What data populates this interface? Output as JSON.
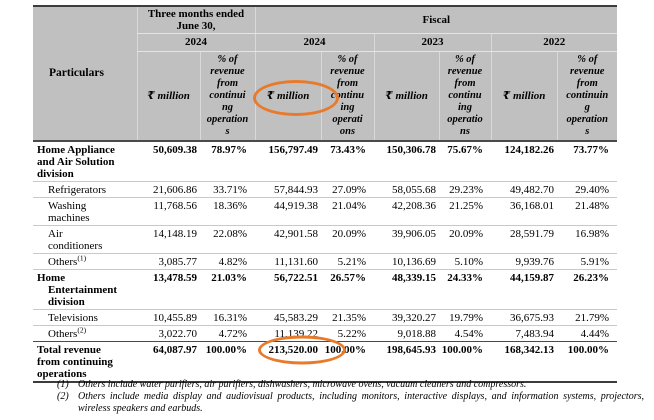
{
  "colors": {
    "annotation_orange": "#E87A2B",
    "header_gray": "#C0C0C0"
  },
  "table": {
    "particulars_label": "Particulars",
    "period_three_months": {
      "title": "Three months ended\nJune 30,",
      "year": "2024"
    },
    "period_fiscal": {
      "title": "Fiscal",
      "years": [
        "2024",
        "2023",
        "2022"
      ]
    },
    "unit_label": "₹ million",
    "pct_labels": [
      "% of\nrevenue\nfrom\ncontinui\nng\noperation\ns",
      "% of\nrevenue\nfrom\ncontinu\ning\noperati\nons",
      "% of\nrevenue\nfrom\ncontinu\ning\noperatio\nns",
      "% of\nrevenue\nfrom\ncontinuin\ng\noperation\ns"
    ],
    "rows": [
      {
        "label": "Home Appliance\nand Air Solution\ndivision",
        "sup": "",
        "bold": true,
        "indent": "flush",
        "divider": "light",
        "values": [
          "50,609.38",
          "78.97%",
          "156,797.49",
          "73.43%",
          "150,306.78",
          "75.67%",
          "124,182.26",
          "73.77%"
        ]
      },
      {
        "label": "Refrigerators",
        "sup": "",
        "bold": false,
        "indent": "indent",
        "divider": "light",
        "values": [
          "21,606.86",
          "33.71%",
          "57,844.93",
          "27.09%",
          "58,055.68",
          "29.23%",
          "49,482.70",
          "29.40%"
        ]
      },
      {
        "label": "Washing\nmachines",
        "sup": "",
        "bold": false,
        "indent": "indent",
        "divider": "light",
        "values": [
          "11,768.56",
          "18.36%",
          "44,919.38",
          "21.04%",
          "42,208.36",
          "21.25%",
          "36,168.01",
          "21.48%"
        ]
      },
      {
        "label": "Air\nconditioners",
        "sup": "",
        "bold": false,
        "indent": "indent",
        "divider": "light",
        "values": [
          "14,148.19",
          "22.08%",
          "42,901.58",
          "20.09%",
          "39,906.05",
          "20.09%",
          "28,591.79",
          "16.98%"
        ]
      },
      {
        "label": "Others",
        "sup": "(1)",
        "bold": false,
        "indent": "indent",
        "divider": "light",
        "values": [
          "3,085.77",
          "4.82%",
          "11,131.60",
          "5.21%",
          "10,136.69",
          "5.10%",
          "9,939.76",
          "5.91%"
        ]
      },
      {
        "label": "Home\nEntertainment\ndivision",
        "sup": "",
        "bold": true,
        "indent": "hang",
        "divider": "light",
        "values": [
          "13,478.59",
          "21.03%",
          "56,722.51",
          "26.57%",
          "48,339.15",
          "24.33%",
          "44,159.87",
          "26.23%"
        ]
      },
      {
        "label": "Televisions",
        "sup": "",
        "bold": false,
        "indent": "indent",
        "divider": "light",
        "values": [
          "10,455.89",
          "16.31%",
          "45,583.29",
          "21.35%",
          "39,320.27",
          "19.79%",
          "36,675.93",
          "21.79%"
        ]
      },
      {
        "label": "Others",
        "sup": "(2)",
        "bold": false,
        "indent": "indent",
        "divider": "dark",
        "values": [
          "3,022.70",
          "4.72%",
          "11,139.22",
          "5.22%",
          "9,018.88",
          "4.54%",
          "7,483.94",
          "4.44%"
        ]
      },
      {
        "label": "Total revenue\nfrom continuing\noperations",
        "sup": "",
        "bold": true,
        "indent": "flush",
        "divider": "heavy",
        "circled_value": 2,
        "values": [
          "64,087.97",
          "100.00%",
          "213,520.00",
          "100.00%",
          "198,645.93",
          "100.00%",
          "168,342.13",
          "100.00%"
        ]
      }
    ],
    "footnotes": [
      {
        "num": "(1)",
        "text": "Others include water purifiers, air purifiers, dishwashers, microwave ovens, vacuum cleaners and compressors."
      },
      {
        "num": "(2)",
        "text": "Others include media display and audiovisual products, including monitors, interactive displays, and information systems, projectors, wireless speakers and earbuds."
      }
    ]
  }
}
